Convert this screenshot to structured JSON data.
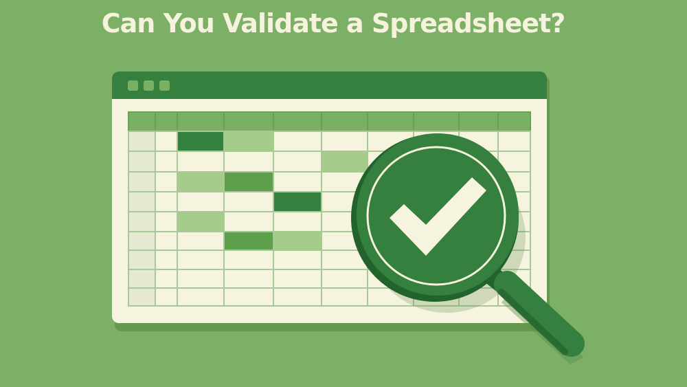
{
  "title": "Can You Validate a Spreadsheet?",
  "colors": {
    "background": "#7bb066",
    "dark_green": "#357f3f",
    "medium_green": "#5e9f4c",
    "light_green": "#a6cc8c",
    "cream": "#f6f3df",
    "header_green": "#7ab063"
  },
  "spreadsheet": {
    "window_buttons": [
      "window-dot",
      "window-dot",
      "window-dot"
    ],
    "highlighted_cells": [
      {
        "row": 1,
        "col": 2,
        "shade": "dark"
      },
      {
        "row": 1,
        "col": 3,
        "shade": "light"
      },
      {
        "row": 2,
        "col": 5,
        "shade": "light"
      },
      {
        "row": 3,
        "col": 2,
        "shade": "light"
      },
      {
        "row": 3,
        "col": 3,
        "shade": "medium"
      },
      {
        "row": 4,
        "col": 4,
        "shade": "dark"
      },
      {
        "row": 5,
        "col": 2,
        "shade": "light"
      },
      {
        "row": 6,
        "col": 3,
        "shade": "medium"
      },
      {
        "row": 6,
        "col": 4,
        "shade": "light"
      }
    ]
  },
  "magnifier": {
    "icon": "checkmark-icon"
  }
}
